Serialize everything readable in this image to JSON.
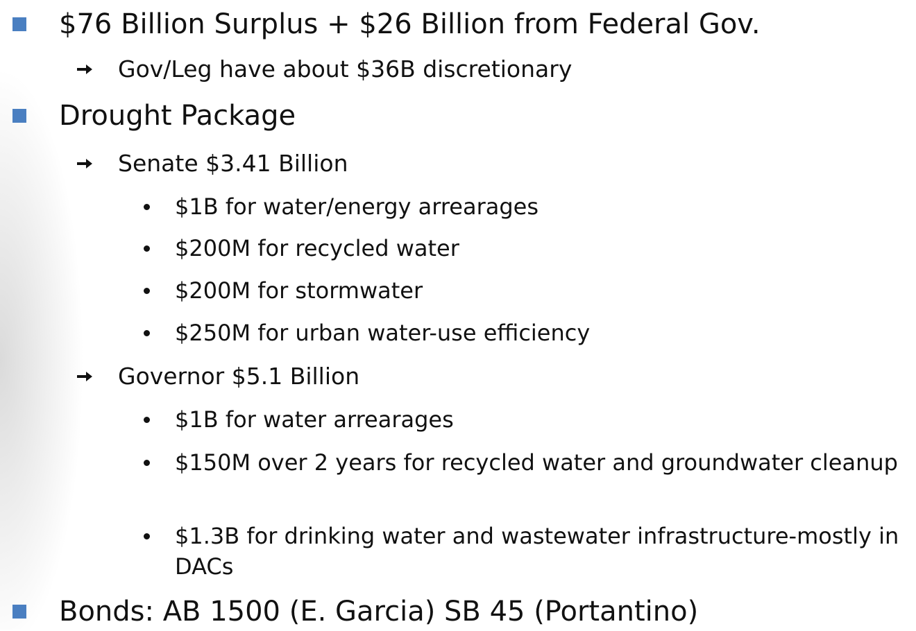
{
  "slide": {
    "items": [
      {
        "level": 1,
        "text": "$76 Billion Surplus + $26 Billion from Federal Gov."
      },
      {
        "level": 2,
        "text": "Gov/Leg have about $36B discretionary"
      },
      {
        "level": 1,
        "text": "Drought Package"
      },
      {
        "level": 2,
        "text": "Senate $3.41 Billion"
      },
      {
        "level": 3,
        "text": "$1B for water/energy arrearages"
      },
      {
        "level": 3,
        "text": "$200M for recycled water"
      },
      {
        "level": 3,
        "text": "$200M for stormwater"
      },
      {
        "level": 3,
        "text": "$250M for urban water-use efficiency"
      },
      {
        "level": 2,
        "text": "Governor $5.1 Billion"
      },
      {
        "level": 3,
        "text": "$1B for water arrearages"
      },
      {
        "level": 3,
        "text": "$150M over 2 years for recycled water and groundwater cleanup"
      },
      {
        "level": 3,
        "text": "$1.3B for drinking water and wastewater infrastructure-mostly in DACs"
      },
      {
        "level": 1,
        "text": "Bonds: AB 1500 (E. Garcia) SB 45 (Portantino)"
      }
    ]
  }
}
